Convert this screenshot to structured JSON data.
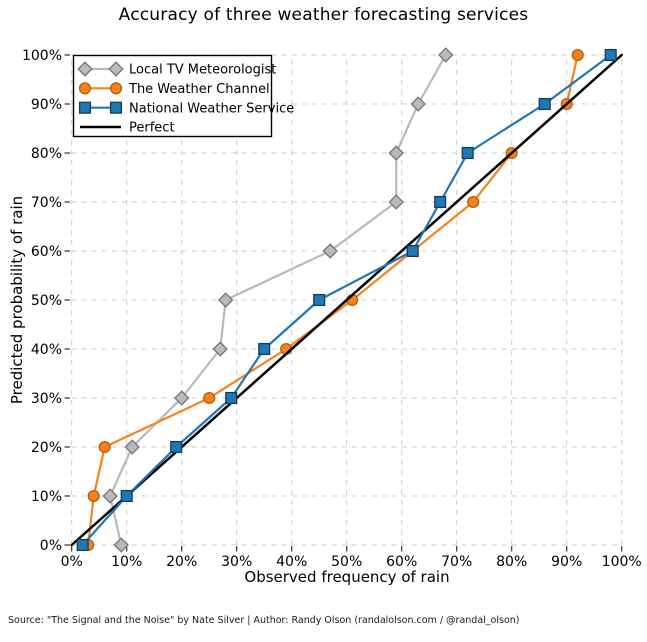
{
  "chart_data": {
    "type": "line",
    "title": "Accuracy of three weather forecasting services",
    "xlabel": "Observed frequency of rain",
    "ylabel": "Predicted probability of rain",
    "xlim": [
      0,
      100
    ],
    "ylim": [
      0,
      100
    ],
    "grid": true,
    "grid_style": "dashed",
    "legend_position": "upper left",
    "tick_values": [
      0,
      10,
      20,
      30,
      40,
      50,
      60,
      70,
      80,
      90,
      100
    ],
    "tick_labels": [
      "0%",
      "10%",
      "20%",
      "30%",
      "40%",
      "50%",
      "60%",
      "70%",
      "80%",
      "90%",
      "100%"
    ],
    "series": [
      {
        "name": "Local TV Meteorologist",
        "marker": "diamond",
        "line_color": "#b9b9b9",
        "fill_color": "#b9b9b9",
        "edge_color": "#757575",
        "points": [
          [
            9,
            0
          ],
          [
            7,
            10
          ],
          [
            11,
            20
          ],
          [
            20,
            30
          ],
          [
            27,
            40
          ],
          [
            28,
            50
          ],
          [
            47,
            60
          ],
          [
            59,
            70
          ],
          [
            59,
            80
          ],
          [
            63,
            90
          ],
          [
            68,
            100
          ]
        ]
      },
      {
        "name": "The Weather Channel",
        "marker": "circle",
        "line_color": "#f5821f",
        "fill_color": "#f5821f",
        "edge_color": "#b25d00",
        "points": [
          [
            3,
            0
          ],
          [
            4,
            10
          ],
          [
            6,
            20
          ],
          [
            25,
            30
          ],
          [
            39,
            40
          ],
          [
            51,
            50
          ],
          [
            62,
            60
          ],
          [
            73,
            70
          ],
          [
            80,
            80
          ],
          [
            90,
            90
          ],
          [
            92,
            100
          ]
        ]
      },
      {
        "name": "National Weather Service",
        "marker": "square",
        "line_color": "#1f77b4",
        "fill_color": "#1f77b4",
        "edge_color": "#0f3d5c",
        "points": [
          [
            2,
            0
          ],
          [
            10,
            10
          ],
          [
            19,
            20
          ],
          [
            29,
            30
          ],
          [
            35,
            40
          ],
          [
            45,
            50
          ],
          [
            62,
            60
          ],
          [
            67,
            70
          ],
          [
            72,
            80
          ],
          [
            86,
            90
          ],
          [
            98,
            100
          ]
        ]
      },
      {
        "name": "Perfect",
        "marker": "none",
        "line_color": "#000000",
        "points": [
          [
            0,
            0
          ],
          [
            100,
            100
          ]
        ]
      }
    ],
    "grid_color": "#cccccc",
    "tick_color": "#333333"
  },
  "footer": {
    "source": "Source: \"The Signal and the Noise\" by Nate Silver | Author: Randy Olson (randalolson.com / @randal_olson)"
  }
}
